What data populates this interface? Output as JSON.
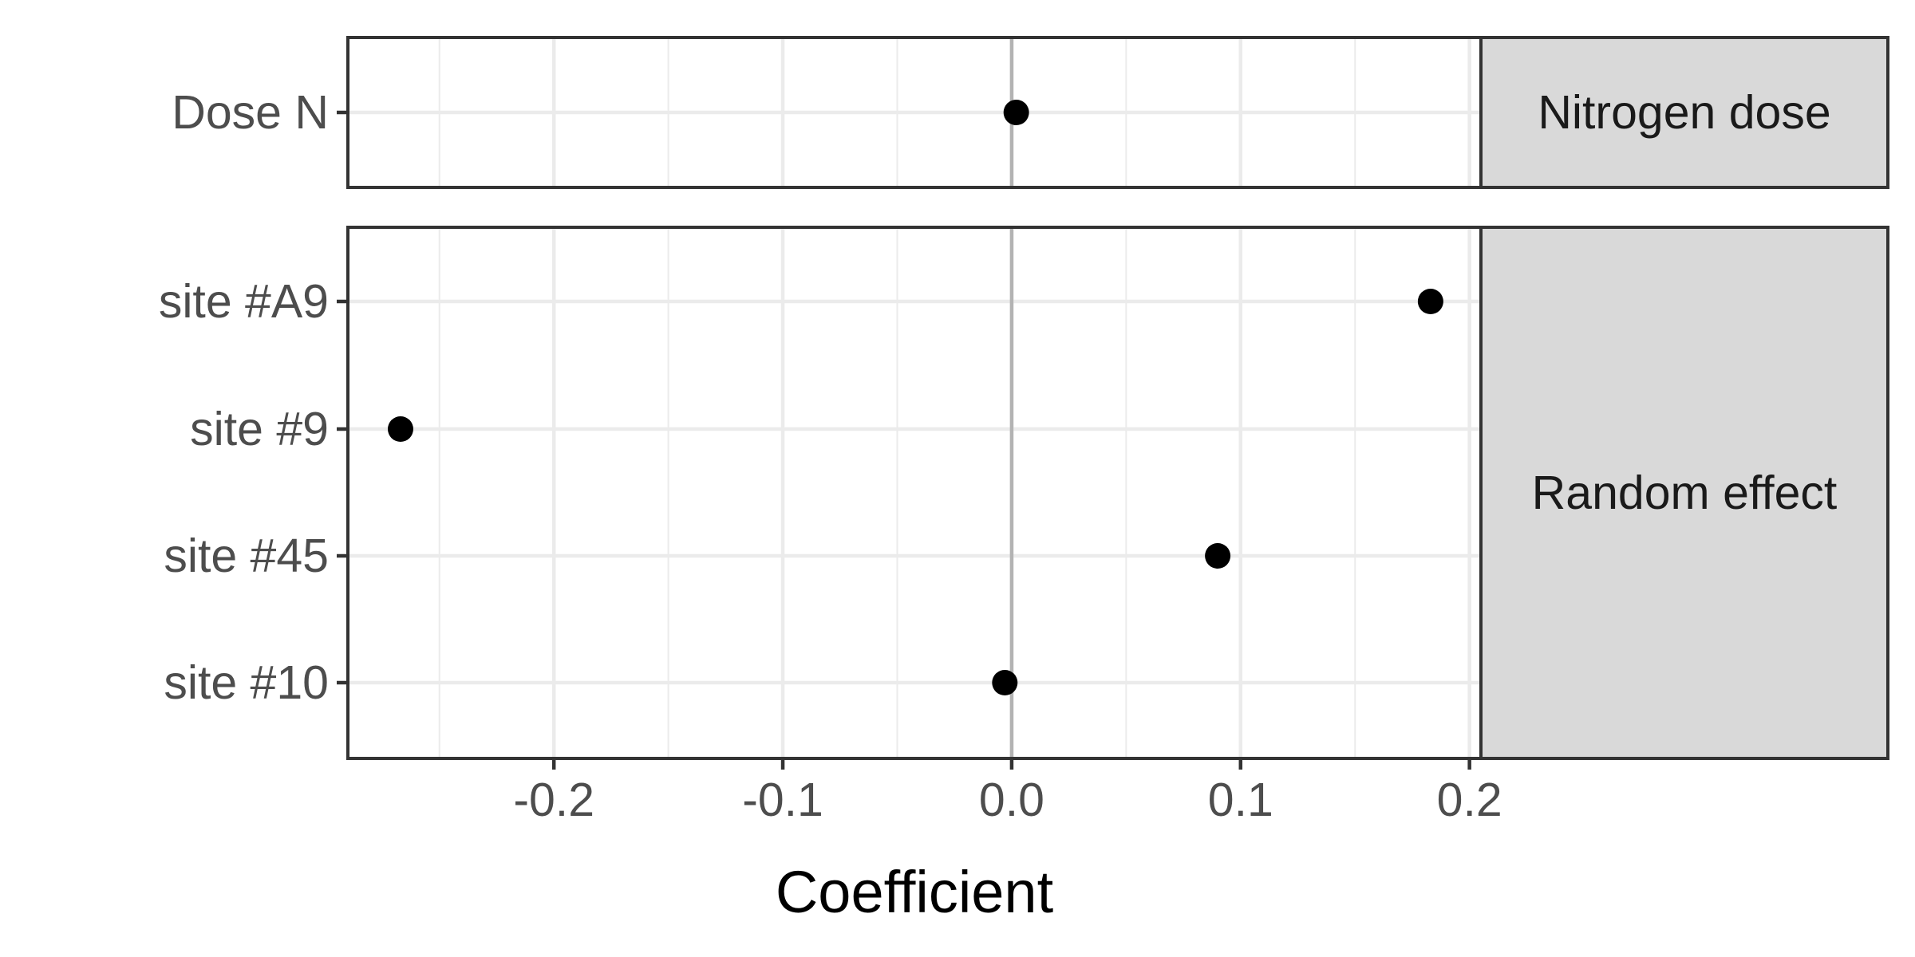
{
  "chart_data": {
    "type": "scatter",
    "xlabel": "Coefficient",
    "xlim": [
      -0.29,
      0.205
    ],
    "x_ticks": [
      -0.2,
      -0.1,
      0.0,
      0.1,
      0.2
    ],
    "x_tick_labels": [
      "-0.2",
      "-0.1",
      "0.0",
      "0.1",
      "0.2"
    ],
    "reference_line": 0.0,
    "grid": true,
    "facets": [
      {
        "strip_label": "Nitrogen dose",
        "categories": [
          "Dose N"
        ],
        "values": [
          0.002
        ]
      },
      {
        "strip_label": "Random effect",
        "categories": [
          "site #A9",
          "site #9",
          "site #45",
          "site #10"
        ],
        "values": [
          0.183,
          -0.267,
          0.09,
          -0.003
        ]
      }
    ]
  }
}
